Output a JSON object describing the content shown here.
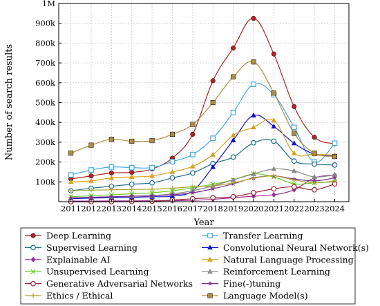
{
  "chart_data": {
    "type": "line",
    "xlabel": "Year",
    "ylabel": "Number of search results",
    "x": [
      2011,
      2012,
      2013,
      2014,
      2015,
      2016,
      2017,
      2018,
      2019,
      2020,
      2021,
      2022,
      2023,
      2024
    ],
    "ylim": [
      0,
      1000000
    ],
    "yticks": [
      100000,
      200000,
      300000,
      400000,
      500000,
      600000,
      700000,
      800000,
      900000,
      1000000
    ],
    "ytick_labels": [
      "100k",
      "200k",
      "300k",
      "400k",
      "500k",
      "600k",
      "700k",
      "800k",
      "900k",
      "1M"
    ],
    "grid": true,
    "legend_position": "bottom",
    "series": [
      {
        "name": "Deep Learning",
        "color": "#b22222",
        "marker": "circle-filled",
        "values": [
          115000,
          130000,
          145000,
          148000,
          165000,
          220000,
          340000,
          610000,
          775000,
          925000,
          745000,
          480000,
          325000,
          292000
        ]
      },
      {
        "name": "Transfer Learning",
        "color": "#3fa9e8",
        "marker": "square-open",
        "values": [
          135000,
          160000,
          175000,
          172000,
          172000,
          202000,
          238000,
          320000,
          450000,
          592000,
          540000,
          375000,
          200000,
          295000
        ]
      },
      {
        "name": "Supervised Learning",
        "color": "#1f6f8b",
        "marker": "circle-open",
        "values": [
          55000,
          68000,
          78000,
          88000,
          95000,
          120000,
          145000,
          192000,
          225000,
          297000,
          305000,
          205000,
          190000,
          185000
        ]
      },
      {
        "name": "Convolutional Neural Network(s)",
        "color": "#1010cc",
        "marker": "triangle-filled",
        "values": [
          15000,
          18000,
          20000,
          22000,
          25000,
          28000,
          55000,
          175000,
          310000,
          435000,
          380000,
          295000,
          240000,
          230000
        ]
      },
      {
        "name": "Explainable AI",
        "color": "#9b2d9b",
        "marker": "diamond-filled",
        "values": [
          3000,
          3000,
          4000,
          4000,
          5000,
          5000,
          7000,
          12000,
          20000,
          28000,
          35000,
          60000,
          120000,
          135000
        ]
      },
      {
        "name": "Natural Language Processing",
        "color": "#d9a21b",
        "marker": "triangle-filled",
        "values": [
          100000,
          105000,
          120000,
          125000,
          130000,
          150000,
          178000,
          237000,
          335000,
          375000,
          410000,
          245000,
          240000,
          235000
        ]
      },
      {
        "name": "Unsupervised Learning",
        "color": "#66cc22",
        "marker": "cross",
        "values": [
          25000,
          30000,
          35000,
          40000,
          45000,
          55000,
          70000,
          88000,
          110000,
          140000,
          125000,
          90000,
          95000,
          100000
        ]
      },
      {
        "name": "Reinforcement Learning",
        "color": "#888888",
        "marker": "triangle-filled",
        "values": [
          20000,
          22000,
          25000,
          27000,
          30000,
          40000,
          55000,
          80000,
          110000,
          140000,
          165000,
          155000,
          125000,
          135000
        ]
      },
      {
        "name": "Generative Adversarial Networks",
        "color": "#9b2335",
        "marker": "circle-open",
        "values": [
          0,
          0,
          0,
          1000,
          2000,
          8000,
          15000,
          20000,
          25000,
          45000,
          65000,
          75000,
          60000,
          90000
        ]
      },
      {
        "name": "Fine(-)tuning",
        "color": "#7b2d8b",
        "marker": "star",
        "values": [
          18000,
          22000,
          25000,
          28000,
          30000,
          35000,
          45000,
          65000,
          90000,
          120000,
          130000,
          115000,
          105000,
          120000
        ]
      },
      {
        "name": "Ethics / Ethical",
        "color": "#a9a432",
        "marker": "plus",
        "values": [
          55000,
          58000,
          60000,
          62000,
          63000,
          68000,
          75000,
          80000,
          95000,
          118000,
          130000,
          110000,
          95000,
          105000
        ]
      },
      {
        "name": "Language Model(s)",
        "color": "#b08d42",
        "marker": "square-filled",
        "values": [
          245000,
          285000,
          315000,
          305000,
          308000,
          340000,
          390000,
          500000,
          630000,
          705000,
          548000,
          345000,
          245000,
          228000
        ]
      }
    ]
  }
}
